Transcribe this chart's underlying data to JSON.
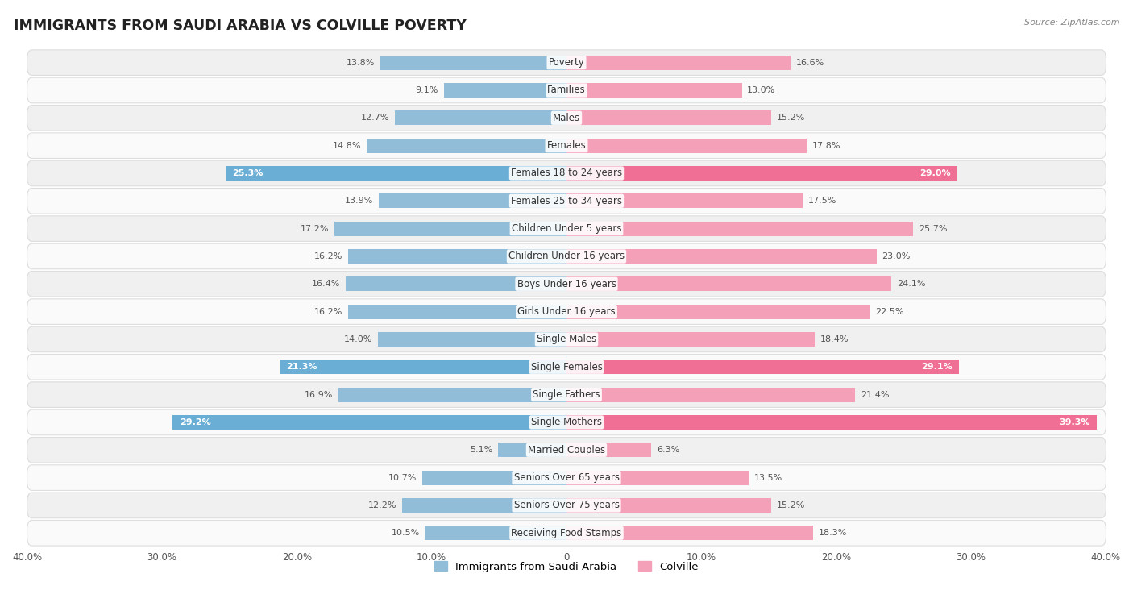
{
  "title": "IMMIGRANTS FROM SAUDI ARABIA VS COLVILLE POVERTY",
  "source": "Source: ZipAtlas.com",
  "categories": [
    "Poverty",
    "Families",
    "Males",
    "Females",
    "Females 18 to 24 years",
    "Females 25 to 34 years",
    "Children Under 5 years",
    "Children Under 16 years",
    "Boys Under 16 years",
    "Girls Under 16 years",
    "Single Males",
    "Single Females",
    "Single Fathers",
    "Single Mothers",
    "Married Couples",
    "Seniors Over 65 years",
    "Seniors Over 75 years",
    "Receiving Food Stamps"
  ],
  "left_values": [
    13.8,
    9.1,
    12.7,
    14.8,
    25.3,
    13.9,
    17.2,
    16.2,
    16.4,
    16.2,
    14.0,
    21.3,
    16.9,
    29.2,
    5.1,
    10.7,
    12.2,
    10.5
  ],
  "right_values": [
    16.6,
    13.0,
    15.2,
    17.8,
    29.0,
    17.5,
    25.7,
    23.0,
    24.1,
    22.5,
    18.4,
    29.1,
    21.4,
    39.3,
    6.3,
    13.5,
    15.2,
    18.3
  ],
  "left_color": "#92bdd8",
  "right_color": "#f4a0b8",
  "highlight_left_color": "#6aadd5",
  "highlight_right_color": "#f07095",
  "highlight_rows": [
    4,
    11,
    13
  ],
  "axis_limit": 40.0,
  "bar_height": 0.52,
  "row_bg_odd": "#f0f0f0",
  "row_bg_even": "#fafafa",
  "row_border": "#dddddd",
  "label_fontsize": 8.5,
  "value_fontsize": 8.0,
  "title_fontsize": 12.5,
  "legend_label_left": "Immigrants from Saudi Arabia",
  "legend_label_right": "Colville"
}
